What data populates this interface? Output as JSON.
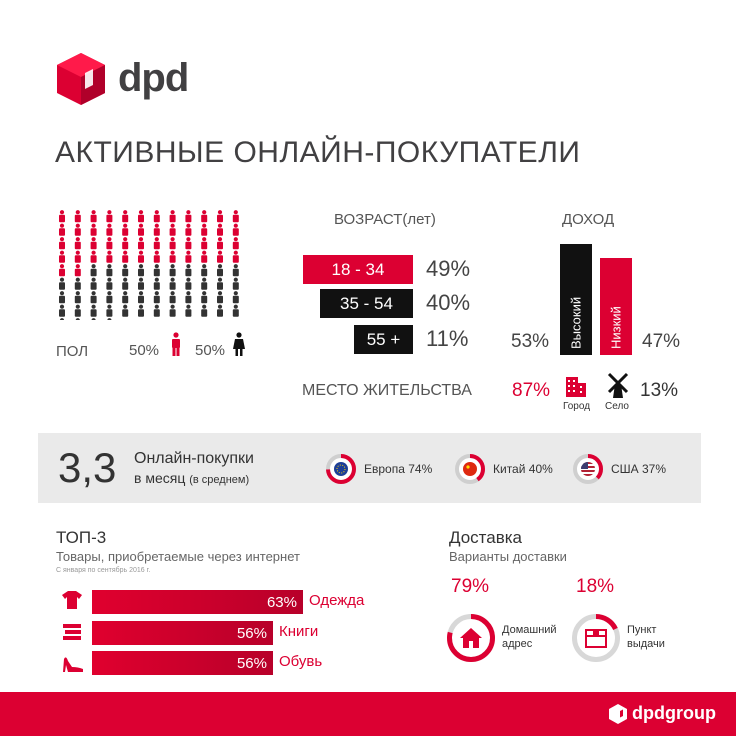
{
  "brand": {
    "logo_text": "dpd",
    "footer_logo": "dpdgroup",
    "accent": "#dc0032",
    "dark": "#111111"
  },
  "title": "АКТИВНЫЕ ОНЛАЙН-ПОКУПАТЕЛИ",
  "gender": {
    "label": "ПОЛ",
    "male_pct": "50%",
    "female_pct": "50%",
    "grid_total": 100,
    "grid_red": 50
  },
  "age": {
    "label": "ВОЗРАСТ(лет)",
    "groups": [
      {
        "range": "18 - 34",
        "pct": "49%",
        "value": 49
      },
      {
        "range": "35 - 54",
        "pct": "40%",
        "value": 40
      },
      {
        "range": "55 +",
        "pct": "11%",
        "value": 11
      }
    ]
  },
  "income": {
    "label": "ДОХОД",
    "high_label": "Высокий",
    "high_pct": "53%",
    "high_value": 53,
    "low_label": "Низкий",
    "low_pct": "47%",
    "low_value": 47
  },
  "residence": {
    "label": "МЕСТО ЖИТЕЛЬСТВА",
    "city_pct": "87%",
    "city_label": "Город",
    "village_pct": "13%",
    "village_label": "Село"
  },
  "purchases": {
    "number": "3,3",
    "line1": "Онлайн-покупки",
    "line2": "в месяц",
    "line2_note": "(в среднем)",
    "regions": [
      {
        "label": "Европа 74%",
        "value": 74,
        "flag": "eu-flag-icon"
      },
      {
        "label": "Китай 40%",
        "value": 40,
        "flag": "china-flag-icon"
      },
      {
        "label": "США 37%",
        "value": 37,
        "flag": "usa-flag-icon"
      }
    ]
  },
  "top3": {
    "title": "ТОП-3",
    "subtitle": "Товары, приобретаемые через интернет",
    "note": "С января по сентябрь 2016 г.",
    "items": [
      {
        "pct": "63%",
        "label": "Одежда",
        "value": 63,
        "icon": "tshirt-icon"
      },
      {
        "pct": "56%",
        "label": "Книги",
        "value": 56,
        "icon": "books-icon"
      },
      {
        "pct": "56%",
        "label": "Обувь",
        "value": 56,
        "icon": "shoe-icon"
      }
    ]
  },
  "delivery": {
    "title": "Доставка",
    "subtitle": "Варианты доставки",
    "options": [
      {
        "pct": "79%",
        "value": 79,
        "line1": "Домашний",
        "line2": "адрес",
        "icon": "house-icon"
      },
      {
        "pct": "18%",
        "value": 18,
        "line1": "Пункт",
        "line2": "выдачи",
        "icon": "parcel-icon"
      }
    ]
  }
}
